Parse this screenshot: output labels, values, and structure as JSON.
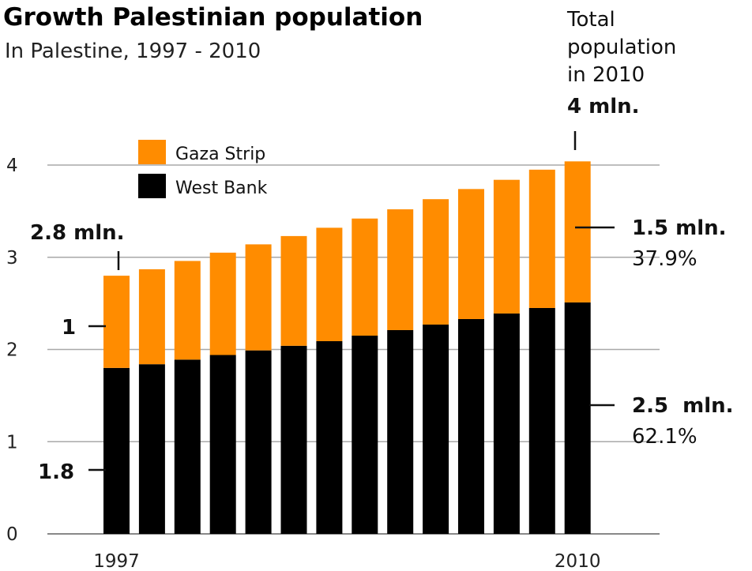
{
  "chart_data": {
    "type": "bar",
    "stacked": true,
    "title": "Growth Palestinian population",
    "subtitle": "In Palestine, 1997 - 2010",
    "categories": [
      "1997",
      "1998",
      "1999",
      "2000",
      "2001",
      "2002",
      "2003",
      "2004",
      "2005",
      "2006",
      "2007",
      "2008",
      "2009",
      "2010"
    ],
    "x_tick_labels": [
      "1997",
      "2010"
    ],
    "series": [
      {
        "name": "West Bank",
        "color": "#000000",
        "values": [
          1.8,
          1.84,
          1.89,
          1.94,
          1.99,
          2.04,
          2.09,
          2.15,
          2.21,
          2.27,
          2.33,
          2.39,
          2.45,
          2.51
        ]
      },
      {
        "name": "Gaza Strip",
        "color": "#ff8c00",
        "values": [
          1.0,
          1.03,
          1.07,
          1.11,
          1.15,
          1.19,
          1.23,
          1.27,
          1.31,
          1.36,
          1.41,
          1.45,
          1.5,
          1.53
        ]
      }
    ],
    "ylim": [
      0,
      4
    ],
    "y_ticks": [
      0,
      1,
      2,
      3,
      4
    ],
    "grid": true,
    "legend_position": "top-left",
    "annotations": {
      "total_note": [
        "Total",
        "population",
        "in 2010"
      ],
      "total_value": "4 mln.",
      "start_total": "2.8 mln.",
      "start_gaza": "1",
      "start_westbank": "1.8",
      "end_gaza_value": "1.5 mln.",
      "end_gaza_pct": "37.9%",
      "end_westbank_value": "2.5  mln.",
      "end_westbank_pct": "62.1%"
    }
  }
}
